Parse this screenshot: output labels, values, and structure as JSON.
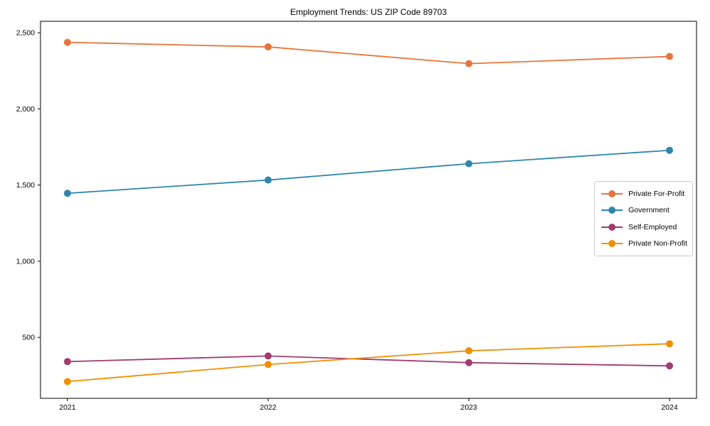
{
  "title": "Employment Trends: US ZIP Code 89703",
  "chart_data": {
    "type": "line",
    "title": "Employment Trends: US ZIP Code 89703",
    "categories": [
      "2021",
      "2022",
      "2023",
      "2024"
    ],
    "series": [
      {
        "name": "Private For-Profit",
        "color": "#E8743B",
        "values": [
          2437,
          2407,
          2297,
          2344
        ]
      },
      {
        "name": "Government",
        "color": "#2E86AB",
        "values": [
          1446,
          1533,
          1640,
          1728
        ]
      },
      {
        "name": "Self-Employed",
        "color": "#A23B72",
        "values": [
          341,
          378,
          334,
          313
        ]
      },
      {
        "name": "Private Non-Profit",
        "color": "#F18F01",
        "values": [
          210,
          322,
          412,
          458
        ]
      }
    ],
    "xlabel": "",
    "ylabel": "",
    "ylim": [
      100,
      2575
    ],
    "yticks": [
      500,
      1000,
      1500,
      2000,
      2500
    ],
    "ytick_labels": [
      "500",
      "1,000",
      "1,500",
      "2,000",
      "2,500"
    ],
    "legend_position": "center-right",
    "legend_labels": [
      "Private For-Profit",
      "Government",
      "Self-Employed",
      "Private Non-Profit"
    ],
    "grid": false,
    "marker": "circle",
    "axis_color": "#000000",
    "background_color": "#ffffff"
  }
}
